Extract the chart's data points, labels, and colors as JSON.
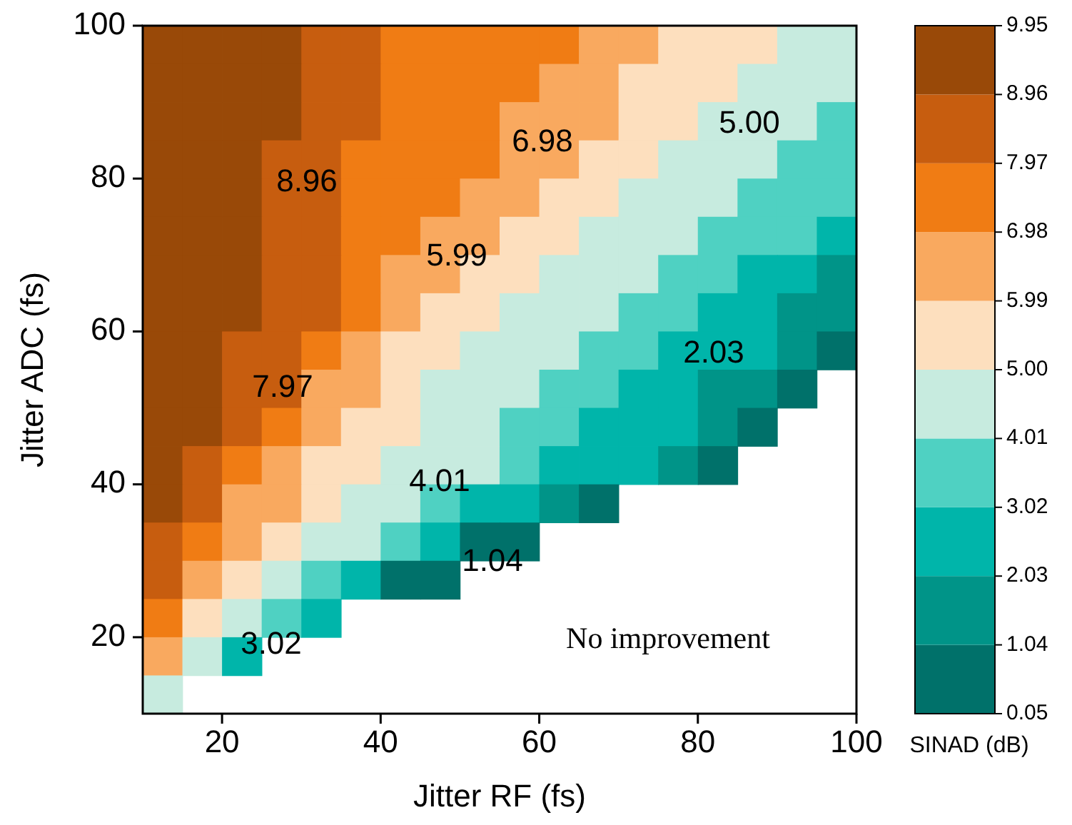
{
  "chart_data": {
    "type": "heatmap",
    "xlabel": "Jitter RF (fs)",
    "ylabel": "Jitter ADC (fs)",
    "clabel": "SINAD (dB)",
    "x": [
      12.5,
      17.5,
      22.5,
      27.5,
      32.5,
      37.5,
      42.5,
      47.5,
      52.5,
      57.5,
      62.5,
      67.5,
      72.5,
      77.5,
      82.5,
      87.5,
      92.5,
      97.5
    ],
    "y": [
      97.5,
      92.5,
      87.5,
      82.5,
      77.5,
      72.5,
      67.5,
      62.5,
      57.5,
      52.5,
      47.5,
      42.5,
      37.5,
      32.5,
      27.5,
      22.5,
      17.5,
      12.5
    ],
    "cells": [
      [
        9.45,
        9.45,
        9.45,
        9.45,
        8.47,
        8.47,
        7.47,
        7.47,
        7.47,
        7.47,
        7.47,
        6.48,
        6.48,
        5.5,
        5.5,
        5.5,
        4.5,
        4.5
      ],
      [
        9.45,
        9.45,
        9.45,
        9.45,
        8.47,
        8.47,
        7.47,
        7.47,
        7.47,
        7.47,
        6.48,
        6.48,
        5.5,
        5.5,
        5.5,
        4.5,
        4.5,
        4.5
      ],
      [
        9.45,
        9.45,
        9.45,
        9.45,
        8.47,
        8.47,
        7.47,
        7.47,
        7.47,
        6.48,
        6.48,
        6.48,
        5.5,
        5.5,
        4.5,
        4.5,
        4.5,
        3.5
      ],
      [
        9.45,
        9.45,
        9.45,
        8.47,
        8.47,
        7.47,
        7.47,
        7.47,
        7.47,
        6.48,
        6.48,
        5.5,
        5.5,
        4.5,
        4.5,
        4.5,
        3.5,
        3.5
      ],
      [
        9.45,
        9.45,
        9.45,
        8.47,
        8.47,
        7.47,
        7.47,
        7.47,
        6.48,
        6.48,
        5.5,
        5.5,
        4.5,
        4.5,
        4.5,
        3.5,
        3.5,
        3.5
      ],
      [
        9.45,
        9.45,
        9.45,
        8.47,
        8.47,
        7.47,
        7.47,
        6.48,
        6.48,
        5.5,
        5.5,
        4.5,
        4.5,
        4.5,
        3.5,
        3.5,
        3.5,
        2.5
      ],
      [
        9.45,
        9.45,
        9.45,
        8.47,
        8.47,
        7.47,
        6.48,
        6.48,
        5.5,
        5.5,
        4.5,
        4.5,
        4.5,
        3.5,
        3.5,
        2.5,
        2.5,
        1.5
      ],
      [
        9.45,
        9.45,
        9.45,
        8.47,
        8.47,
        7.47,
        6.48,
        5.5,
        5.5,
        4.5,
        4.5,
        4.5,
        3.5,
        3.5,
        2.5,
        2.5,
        1.5,
        1.5
      ],
      [
        9.45,
        9.45,
        8.47,
        8.47,
        7.47,
        6.48,
        5.5,
        5.5,
        4.5,
        4.5,
        4.5,
        3.5,
        3.5,
        2.5,
        2.5,
        2.5,
        1.5,
        0.55
      ],
      [
        9.45,
        9.45,
        8.47,
        8.47,
        6.48,
        6.48,
        5.5,
        4.5,
        4.5,
        4.5,
        3.5,
        3.5,
        2.5,
        2.5,
        1.5,
        1.5,
        0.55,
        null
      ],
      [
        9.45,
        9.45,
        8.47,
        7.47,
        6.48,
        5.5,
        5.5,
        4.5,
        4.5,
        3.5,
        3.5,
        2.5,
        2.5,
        2.5,
        1.5,
        0.55,
        null,
        null
      ],
      [
        9.45,
        8.47,
        7.47,
        6.48,
        5.5,
        5.5,
        4.5,
        4.5,
        4.5,
        3.5,
        2.5,
        2.5,
        2.5,
        1.5,
        0.55,
        null,
        null,
        null
      ],
      [
        9.45,
        8.47,
        6.48,
        6.48,
        5.5,
        4.5,
        4.5,
        3.5,
        2.5,
        2.5,
        1.5,
        0.55,
        null,
        null,
        null,
        null,
        null,
        null
      ],
      [
        8.47,
        7.47,
        6.48,
        5.5,
        4.5,
        4.5,
        3.5,
        2.5,
        0.55,
        0.55,
        null,
        null,
        null,
        null,
        null,
        null,
        null,
        null
      ],
      [
        8.47,
        6.48,
        5.5,
        4.5,
        3.5,
        2.5,
        0.55,
        0.55,
        null,
        null,
        null,
        null,
        null,
        null,
        null,
        null,
        null,
        null
      ],
      [
        7.47,
        5.5,
        4.5,
        3.5,
        2.5,
        null,
        null,
        null,
        null,
        null,
        null,
        null,
        null,
        null,
        null,
        null,
        null,
        null
      ],
      [
        6.48,
        4.5,
        2.5,
        null,
        null,
        null,
        null,
        null,
        null,
        null,
        null,
        null,
        null,
        null,
        null,
        null,
        null,
        null
      ],
      [
        4.5,
        null,
        null,
        null,
        null,
        null,
        null,
        null,
        null,
        null,
        null,
        null,
        null,
        null,
        null,
        null,
        null,
        null
      ]
    ],
    "xlim": [
      10,
      100
    ],
    "ylim": [
      10,
      100
    ],
    "xticks": [
      20,
      40,
      60,
      80,
      100
    ],
    "yticks": [
      20,
      40,
      60,
      80,
      100
    ],
    "clim": [
      0.05,
      9.95
    ],
    "cticks": [
      0.05,
      1.04,
      2.03,
      3.02,
      4.01,
      {
        "value": 5.0,
        "label": "5.00"
      },
      5.99,
      6.98,
      7.97,
      8.96,
      9.95
    ],
    "colors": [
      "#00716a",
      "#009488",
      "#00b5aa",
      "#4fd1c2",
      "#c7ebdf",
      "#fddfbe",
      "#f9a95f",
      "#f07c14",
      "#c75d0f",
      "#994908"
    ],
    "annotations": [
      "8.96",
      "6.98",
      "5.00",
      "5.99",
      "7.97",
      "4.01",
      "2.03",
      "1.04",
      "3.02",
      "No improvement"
    ]
  }
}
